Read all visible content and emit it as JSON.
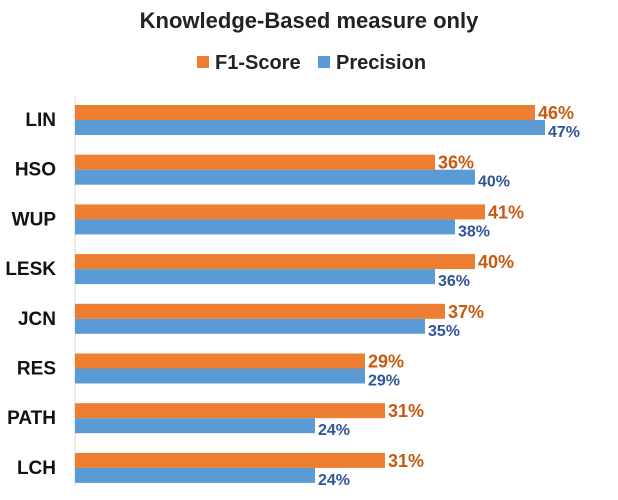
{
  "chart_data": {
    "type": "bar",
    "orientation": "horizontal",
    "title": "Knowledge-Based measure only",
    "xlabel": "",
    "ylabel": "",
    "xlim": [
      0,
      50
    ],
    "grid": false,
    "legend_position": "top",
    "categories": [
      "LIN",
      "HSO",
      "WUP",
      "LESK",
      "JCN",
      "RES",
      "PATH",
      "LCH"
    ],
    "series": [
      {
        "name": "F1-Score",
        "color": "#ED7D31",
        "label_color": "#C55A11",
        "values": [
          46,
          36,
          41,
          40,
          37,
          29,
          31,
          31
        ],
        "labels": [
          "46%",
          "36%",
          "41%",
          "40%",
          "37%",
          "29%",
          "31%",
          "31%"
        ]
      },
      {
        "name": "Precision",
        "color": "#5B9BD5",
        "label_color": "#2F5597",
        "values": [
          47,
          40,
          38,
          36,
          35,
          29,
          24,
          24
        ],
        "labels": [
          "47%",
          "40%",
          "38%",
          "36%",
          "35%",
          "29%",
          "24%",
          "24%"
        ]
      }
    ]
  }
}
